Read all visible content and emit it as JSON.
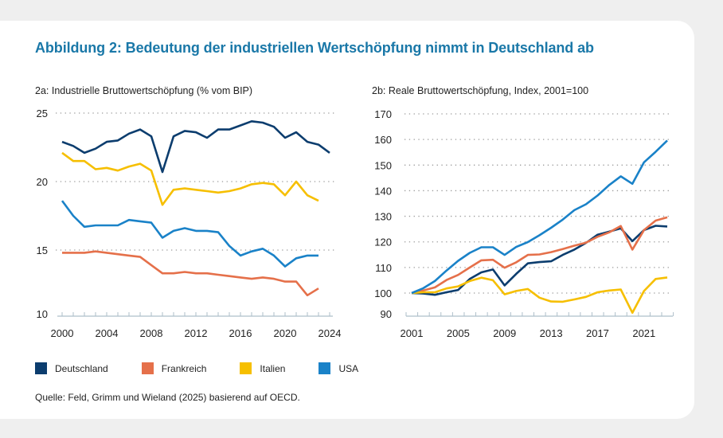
{
  "title": "Abbildung 2: Bedeutung der industriellen Wertschöpfung nimmt in Deutschland ab",
  "source": "Quelle: Feld, Grimm und Wieland (2025) basierend auf OECD.",
  "colors": {
    "Deutschland": "#0c3d6e",
    "Frankreich": "#e5704a",
    "Italien": "#f6bf00",
    "USA": "#1a82c8"
  },
  "legend": [
    {
      "name": "Deutschland"
    },
    {
      "name": "Frankreich"
    },
    {
      "name": "Italien"
    },
    {
      "name": "USA"
    }
  ],
  "chart_data": [
    {
      "type": "line",
      "title": "2a: Industrielle Bruttowertschöpfung (% vom BIP)",
      "xlabel": "",
      "ylabel": "",
      "ylim": [
        10,
        25
      ],
      "yticks": [
        10,
        15,
        20,
        25
      ],
      "xlim": [
        2000,
        2024
      ],
      "xticks": [
        2000,
        2004,
        2008,
        2012,
        2016,
        2020,
        2024
      ],
      "grid": "horizontal dotted",
      "legend": "bottom",
      "x_start": 2000,
      "series": [
        {
          "name": "Deutschland",
          "values": [
            22.9,
            22.6,
            22.1,
            22.4,
            22.9,
            23.0,
            23.5,
            23.8,
            23.3,
            20.7,
            23.3,
            23.7,
            23.6,
            23.2,
            23.8,
            23.8,
            24.1,
            24.4,
            24.3,
            24.0,
            23.2,
            23.6,
            22.9,
            22.7,
            22.1
          ]
        },
        {
          "name": "Frankreich",
          "values": [
            14.8,
            14.8,
            14.8,
            14.9,
            14.8,
            14.7,
            14.6,
            14.5,
            13.9,
            13.3,
            13.3,
            13.4,
            13.3,
            13.3,
            13.2,
            13.1,
            13.0,
            12.9,
            13.0,
            12.9,
            12.7,
            12.7,
            11.7,
            12.2
          ]
        },
        {
          "name": "Italien",
          "values": [
            22.1,
            21.5,
            21.5,
            20.9,
            21.0,
            20.8,
            21.1,
            21.3,
            20.8,
            18.3,
            19.4,
            19.5,
            19.4,
            19.3,
            19.2,
            19.3,
            19.5,
            19.8,
            19.9,
            19.8,
            19.0,
            20.0,
            19.0,
            18.6
          ]
        },
        {
          "name": "USA",
          "values": [
            18.6,
            17.5,
            16.7,
            16.8,
            16.8,
            16.8,
            17.2,
            17.1,
            17.0,
            15.9,
            16.4,
            16.6,
            16.4,
            16.4,
            16.3,
            15.3,
            14.6,
            14.9,
            15.1,
            14.6,
            13.8,
            14.4,
            14.6,
            14.6
          ]
        }
      ]
    },
    {
      "type": "line",
      "title": "2b: Reale Bruttowertschöpfung, Index, 2001=100",
      "xlabel": "",
      "ylabel": "",
      "ylim": [
        90,
        170
      ],
      "yticks": [
        90,
        100,
        110,
        120,
        130,
        140,
        150,
        160,
        170
      ],
      "xlim": [
        2001,
        2023
      ],
      "xticks": [
        2001,
        2005,
        2009,
        2013,
        2017,
        2021
      ],
      "grid": "horizontal dotted",
      "legend": "bottom",
      "x_start": 2001,
      "series": [
        {
          "name": "Deutschland",
          "values": [
            100,
            99.8,
            99.3,
            100.3,
            101.2,
            105.5,
            108.1,
            109.2,
            103.0,
            107.5,
            111.6,
            112.1,
            112.4,
            114.9,
            117.0,
            119.6,
            122.8,
            124.0,
            125.3,
            120.3,
            124.6,
            126.3,
            126.0
          ]
        },
        {
          "name": "Frankreich",
          "values": [
            100,
            101.0,
            102.2,
            105.1,
            107.1,
            110.0,
            112.8,
            113.0,
            109.9,
            112.0,
            114.9,
            115.1,
            116.0,
            117.2,
            118.5,
            119.7,
            122.0,
            123.7,
            126.2,
            117.0,
            124.6,
            128.3,
            129.6
          ]
        },
        {
          "name": "Italien",
          "values": [
            100,
            100.3,
            100.3,
            101.8,
            102.6,
            104.7,
            106.0,
            105.0,
            99.5,
            100.8,
            101.6,
            98.2,
            96.7,
            96.6,
            97.5,
            98.5,
            100.3,
            101.0,
            101.4,
            92.3,
            100.8,
            105.5,
            106.1
          ]
        },
        {
          "name": "USA",
          "values": [
            100,
            101.9,
            104.7,
            108.8,
            112.6,
            115.7,
            117.9,
            117.9,
            114.9,
            118.0,
            119.9,
            122.6,
            125.5,
            128.7,
            132.4,
            134.7,
            138.1,
            142.2,
            145.6,
            142.7,
            151.1,
            155.2,
            159.6
          ]
        }
      ]
    }
  ]
}
